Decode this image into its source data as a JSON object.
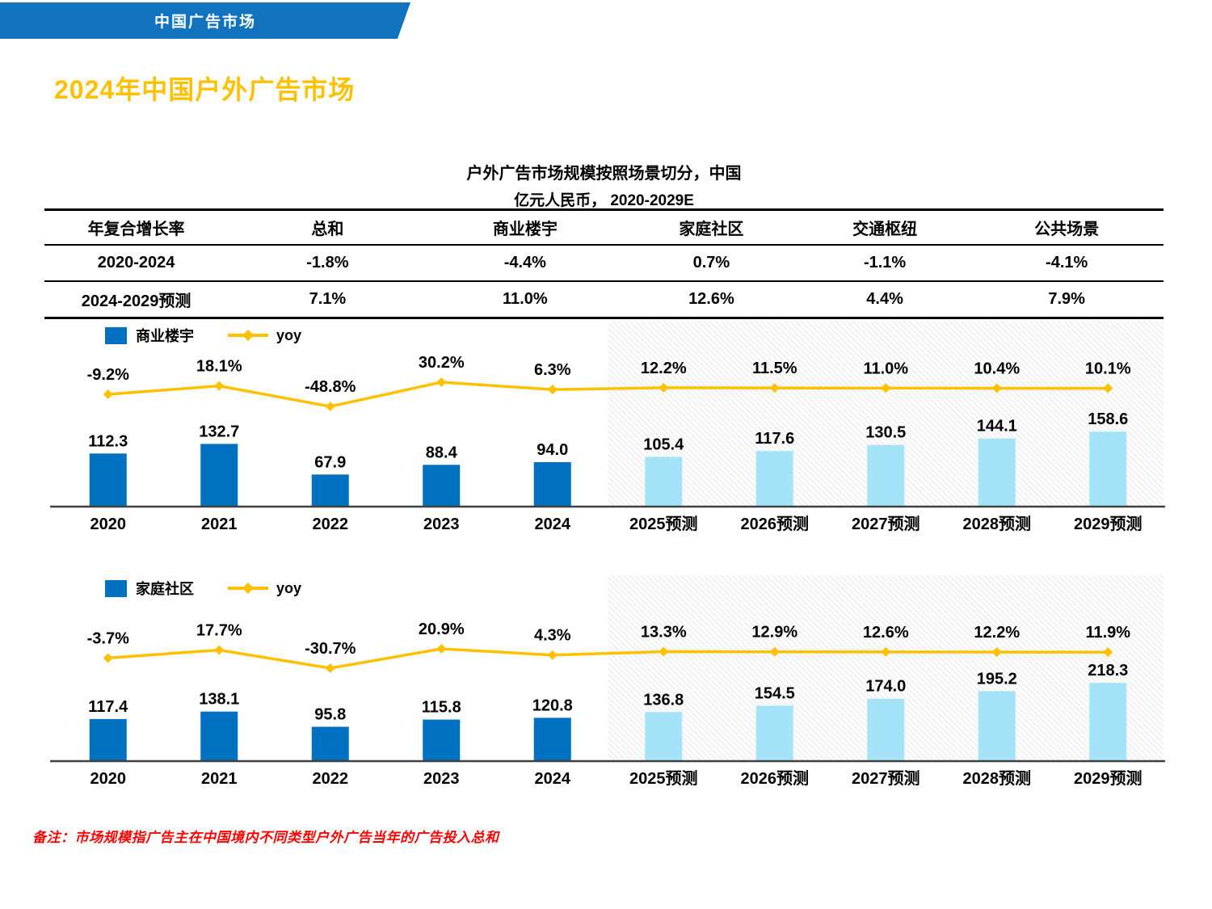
{
  "banner": {
    "label": "中国广告市场"
  },
  "page_title": "2024年中国户外广告市场",
  "chart_header": {
    "title": "户外广告市场规模按照场景切分，中国",
    "subtitle": "亿元人民币， 2020-2029E"
  },
  "table": {
    "columns": [
      "年复合增长率",
      "总和",
      "商业楼宇",
      "家庭社区",
      "交通枢纽",
      "公共场景"
    ],
    "rows": [
      {
        "label": "2020-2024",
        "values": [
          "-1.8%",
          "-4.4%",
          "0.7%",
          "-1.1%",
          "-4.1%"
        ]
      },
      {
        "label": "2024-2029预测",
        "values": [
          "7.1%",
          "11.0%",
          "12.6%",
          "4.4%",
          "7.9%"
        ]
      }
    ]
  },
  "colors": {
    "banner_blue": "#1173BD",
    "title_gold": "#FFC000",
    "bar_actual": "#0070C0",
    "bar_forecast": "#A5E4F8",
    "yoy_line": "#FFC000",
    "axis": "#404040",
    "hatch_line": "#DCDCDC",
    "footnote_red": "#FF0000"
  },
  "chart_data": [
    {
      "type": "bar",
      "title": "商业楼宇",
      "legend": {
        "bar": "商业楼宇",
        "line": "yoy"
      },
      "categories": [
        "2020",
        "2021",
        "2022",
        "2023",
        "2024",
        "2025预测",
        "2026预测",
        "2027预测",
        "2028预测",
        "2029预测"
      ],
      "series": [
        {
          "name": "商业楼宇",
          "type": "bar",
          "values": [
            112.3,
            132.7,
            67.9,
            88.4,
            94.0,
            105.4,
            117.6,
            130.5,
            144.1,
            158.6
          ]
        },
        {
          "name": "yoy",
          "type": "line",
          "values_pct": [
            -9.2,
            18.1,
            -48.8,
            30.2,
            6.3,
            12.2,
            11.5,
            11.0,
            10.4,
            10.1
          ]
        }
      ],
      "bar_labels": [
        "112.3",
        "132.7",
        "67.9",
        "88.4",
        "94.0",
        "105.4",
        "117.6",
        "130.5",
        "144.1",
        "158.6"
      ],
      "yoy_labels": [
        "-9.2%",
        "18.1%",
        "-48.8%",
        "30.2%",
        "6.3%",
        "12.2%",
        "11.5%",
        "11.0%",
        "10.4%",
        "10.1%"
      ],
      "forecast_start_index": 5,
      "ylabel": "亿元人民币",
      "grid": false,
      "legend_position": "top-left"
    },
    {
      "type": "bar",
      "title": "家庭社区",
      "legend": {
        "bar": "家庭社区",
        "line": "yoy"
      },
      "categories": [
        "2020",
        "2021",
        "2022",
        "2023",
        "2024",
        "2025预测",
        "2026预测",
        "2027预测",
        "2028预测",
        "2029预测"
      ],
      "series": [
        {
          "name": "家庭社区",
          "type": "bar",
          "values": [
            117.4,
            138.1,
            95.8,
            115.8,
            120.8,
            136.8,
            154.5,
            174.0,
            195.2,
            218.3
          ]
        },
        {
          "name": "yoy",
          "type": "line",
          "values_pct": [
            -3.7,
            17.7,
            -30.7,
            20.9,
            4.3,
            13.3,
            12.9,
            12.6,
            12.2,
            11.9
          ]
        }
      ],
      "bar_labels": [
        "117.4",
        "138.1",
        "95.8",
        "115.8",
        "120.8",
        "136.8",
        "154.5",
        "174.0",
        "195.2",
        "218.3"
      ],
      "yoy_labels": [
        "-3.7%",
        "17.7%",
        "-30.7%",
        "20.9%",
        "4.3%",
        "13.3%",
        "12.9%",
        "12.6%",
        "12.2%",
        "11.9%"
      ],
      "forecast_start_index": 5,
      "ylabel": "亿元人民币",
      "grid": false,
      "legend_position": "top-left"
    }
  ],
  "footnote": "备注：市场规模指广告主在中国境内不同类型户外广告当年的广告投入总和"
}
